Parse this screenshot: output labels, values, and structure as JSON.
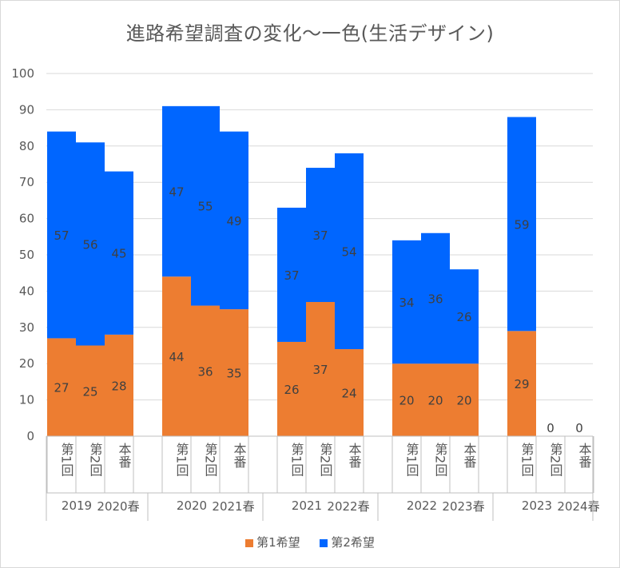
{
  "chart_data": {
    "type": "bar",
    "stacked": true,
    "title": "進路希望調査の変化～一色(生活デザイン)",
    "ylim": [
      0,
      100
    ],
    "yticks": [
      0,
      10,
      20,
      30,
      40,
      50,
      60,
      70,
      80,
      90,
      100
    ],
    "groups": [
      {
        "year": "2019",
        "spring": "2020春",
        "categories": [
          "第1回",
          "第2回",
          "本番"
        ]
      },
      {
        "year": "2020",
        "spring": "2021春",
        "categories": [
          "第1回",
          "第2回",
          "本番"
        ]
      },
      {
        "year": "2021",
        "spring": "2022春",
        "categories": [
          "第1回",
          "第2回",
          "本番"
        ]
      },
      {
        "year": "2022",
        "spring": "2023春",
        "categories": [
          "第1回",
          "第2回",
          "本番"
        ]
      },
      {
        "year": "2023",
        "spring": "2024春",
        "categories": [
          "第1回",
          "第2回",
          "本番"
        ]
      }
    ],
    "series": [
      {
        "name": "第1希望",
        "color": "#ed7d31",
        "values": [
          [
            27,
            25,
            28
          ],
          [
            44,
            36,
            35
          ],
          [
            26,
            37,
            24
          ],
          [
            20,
            20,
            20
          ],
          [
            29,
            0,
            0
          ]
        ]
      },
      {
        "name": "第2希望",
        "color": "#0066ff",
        "values": [
          [
            57,
            56,
            45
          ],
          [
            47,
            55,
            49
          ],
          [
            37,
            37,
            54
          ],
          [
            34,
            36,
            26
          ],
          [
            59,
            null,
            null
          ]
        ]
      }
    ]
  },
  "legend": {
    "items": [
      {
        "label": "第1希望",
        "color": "#ed7d31"
      },
      {
        "label": "第2希望",
        "color": "#0066ff"
      }
    ]
  }
}
